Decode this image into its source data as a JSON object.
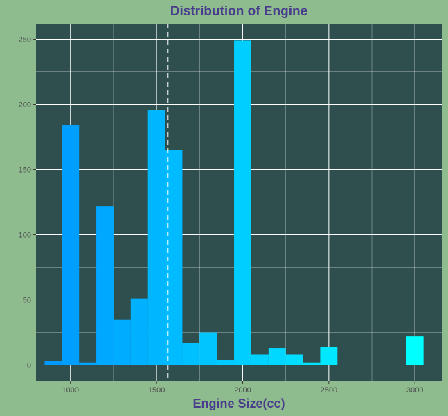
{
  "chart_data": {
    "type": "bar",
    "title": "Distribution of Engine",
    "xlabel": "Engine Size(cc)",
    "ylabel": "",
    "xlim": [
      800,
      3160
    ],
    "ylim": [
      -12.5,
      262
    ],
    "x_ticks": [
      1000,
      1500,
      2000,
      2500,
      3000
    ],
    "y_ticks": [
      0,
      50,
      100,
      150,
      200,
      250
    ],
    "bin_width": 100,
    "bins": [
      {
        "x": 900,
        "count": 3
      },
      {
        "x": 1000,
        "count": 184
      },
      {
        "x": 1100,
        "count": 2
      },
      {
        "x": 1200,
        "count": 122
      },
      {
        "x": 1300,
        "count": 35
      },
      {
        "x": 1400,
        "count": 51
      },
      {
        "x": 1500,
        "count": 196
      },
      {
        "x": 1600,
        "count": 165
      },
      {
        "x": 1700,
        "count": 17
      },
      {
        "x": 1800,
        "count": 25
      },
      {
        "x": 1900,
        "count": 4
      },
      {
        "x": 2000,
        "count": 249
      },
      {
        "x": 2100,
        "count": 8
      },
      {
        "x": 2200,
        "count": 13
      },
      {
        "x": 2300,
        "count": 8
      },
      {
        "x": 2400,
        "count": 2
      },
      {
        "x": 2500,
        "count": 14
      },
      {
        "x": 3000,
        "count": 22
      }
    ],
    "mean_line": 1565,
    "grid": true,
    "legend": "none",
    "colors": {
      "panel_background": "#2f4f4f",
      "plot_background": "#8fbc8f",
      "grid": "#ffffff",
      "title_text": "#483d8b",
      "mean_line": "#ffffff",
      "fill_low": "#0099ff",
      "fill_high": "#00ffff"
    }
  }
}
